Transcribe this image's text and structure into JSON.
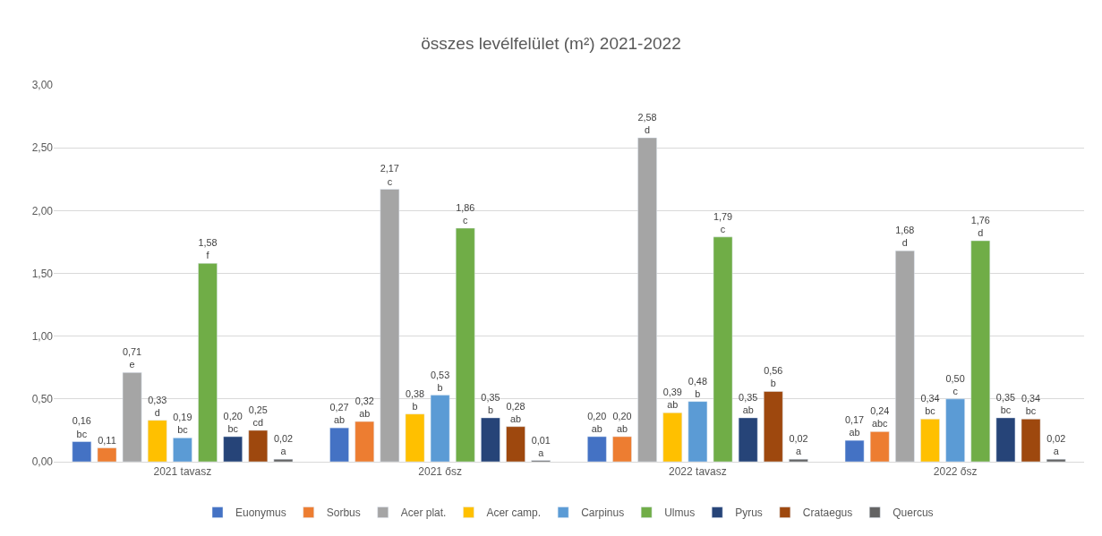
{
  "chart_data": {
    "type": "bar",
    "title": "összes levélfelület (m²) 2021-2022",
    "categories": [
      "2021 tavasz",
      "2021 ősz",
      "2022 tavasz",
      "2022 ősz"
    ],
    "series": [
      {
        "name": "Euonymus",
        "color": "#4472c4",
        "values": [
          0.16,
          0.27,
          0.2,
          0.17
        ],
        "value_labels": [
          "0,16\nbc",
          "0,27\nab",
          "0,20\nab",
          "0,17\nab"
        ]
      },
      {
        "name": "Sorbus",
        "color": "#ed7d31",
        "values": [
          0.11,
          0.32,
          0.2,
          0.24
        ],
        "value_labels": [
          "0,11",
          "0,32\nab",
          "0,20\nab",
          "0,24\nabc"
        ]
      },
      {
        "name": "Acer plat.",
        "color": "#a5a5a5",
        "values": [
          0.71,
          2.17,
          2.58,
          1.68
        ],
        "value_labels": [
          "0,71\ne",
          "2,17\nc",
          "2,58\nd",
          "1,68\nd"
        ]
      },
      {
        "name": "Acer camp.",
        "color": "#ffc000",
        "values": [
          0.33,
          0.38,
          0.39,
          0.34
        ],
        "value_labels": [
          "0,33\nd",
          "0,38\nb",
          "0,39\nab",
          "0,34\nbc"
        ]
      },
      {
        "name": "Carpinus",
        "color": "#5b9bd5",
        "values": [
          0.19,
          0.53,
          0.48,
          0.5
        ],
        "value_labels": [
          "0,19\nbc",
          "0,53\nb",
          "0,48\nb",
          "0,50\nc"
        ]
      },
      {
        "name": "Ulmus",
        "color": "#70ad47",
        "values": [
          1.58,
          1.86,
          1.79,
          1.76
        ],
        "value_labels": [
          "1,58\nf",
          "1,86\nc",
          "1,79\nc",
          "1,76\nd"
        ]
      },
      {
        "name": "Pyrus",
        "color": "#264478",
        "values": [
          0.2,
          0.35,
          0.35,
          0.35
        ],
        "value_labels": [
          "0,20\nbc",
          "0,35\nb",
          "0,35\nab",
          "0,35\nbc"
        ]
      },
      {
        "name": "Crataegus",
        "color": "#9e480e",
        "values": [
          0.25,
          0.28,
          0.56,
          0.34
        ],
        "value_labels": [
          "0,25\ncd",
          "0,28\nab",
          "0,56\nb",
          "0,34\nbc"
        ]
      },
      {
        "name": "Quercus",
        "color": "#636363",
        "values": [
          0.02,
          0.01,
          0.02,
          0.02
        ],
        "value_labels": [
          "0,02\na",
          "0,01\na",
          "0,02\na",
          "0,02\na"
        ]
      }
    ],
    "ylim": [
      0,
      3
    ],
    "yticks": [
      {
        "value": 0,
        "label": "0,00"
      },
      {
        "value": 0.5,
        "label": "0,50"
      },
      {
        "value": 1,
        "label": "1,00"
      },
      {
        "value": 1.5,
        "label": "1,50"
      },
      {
        "value": 2,
        "label": "2,00"
      },
      {
        "value": 2.5,
        "label": "2,50"
      },
      {
        "value": 3,
        "label": "3,00"
      }
    ],
    "grid": "y",
    "legend": "bottom"
  }
}
